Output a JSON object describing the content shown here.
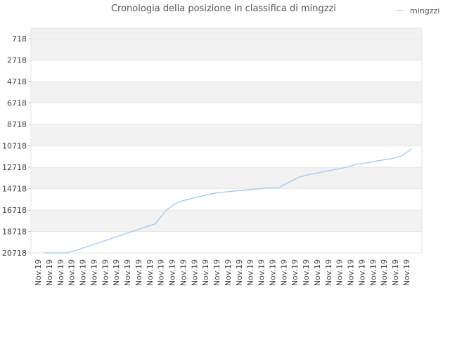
{
  "chart_data": {
    "type": "line",
    "title": "Cronologia della posizione in classifica di mingzzi",
    "xlabel": "",
    "ylabel": "",
    "y_reversed": true,
    "ylim": [
      20718,
      -282
    ],
    "y_ticks": [
      718,
      2718,
      4718,
      6718,
      8718,
      10718,
      12718,
      14718,
      16718,
      18718,
      20718
    ],
    "y_tick_labels": [
      "718",
      "2718",
      "4718",
      "6718",
      "8718",
      "10718",
      "12718",
      "14718",
      "16718",
      "18718",
      "20718"
    ],
    "x_tick_labels": [
      "Nov.19",
      "Nov.19",
      "Nov.19",
      "Nov.19",
      "Nov.19",
      "Nov.19",
      "Nov.19",
      "Nov.19",
      "Nov.19",
      "Nov.19",
      "Nov.19",
      "Nov.19",
      "Nov.19",
      "Nov.19",
      "Nov.19",
      "Nov.19",
      "Nov.19",
      "Nov.19",
      "Nov.19",
      "Nov.19",
      "Nov.19",
      "Nov.19",
      "Nov.19",
      "Nov.19",
      "Nov.19",
      "Nov.19",
      "Nov.19",
      "Nov.19",
      "Nov.19",
      "Nov.19",
      "Nov.19",
      "Nov.19",
      "Nov.19",
      "Nov.19"
    ],
    "legend_position": "top-right",
    "grid": true,
    "band_color": "#f2f2f2",
    "series": [
      {
        "name": "mingzzi",
        "color": "#99c6ee",
        "x": [
          0,
          1,
          2,
          3,
          4,
          5,
          6,
          7,
          8,
          9,
          10,
          11,
          12,
          13,
          14,
          15,
          16,
          17,
          18,
          19,
          20,
          21,
          22,
          23,
          24,
          25,
          26,
          27,
          28,
          29,
          30,
          31,
          32,
          33
        ],
        "values": [
          20718,
          20718,
          20718,
          20450,
          20100,
          19750,
          19400,
          19050,
          18700,
          18350,
          18000,
          16700,
          16000,
          15700,
          15450,
          15200,
          15050,
          14950,
          14850,
          14750,
          14650,
          14650,
          14100,
          13600,
          13350,
          13150,
          12950,
          12750,
          12450,
          12300,
          12100,
          11950,
          11700,
          11000
        ]
      }
    ]
  }
}
